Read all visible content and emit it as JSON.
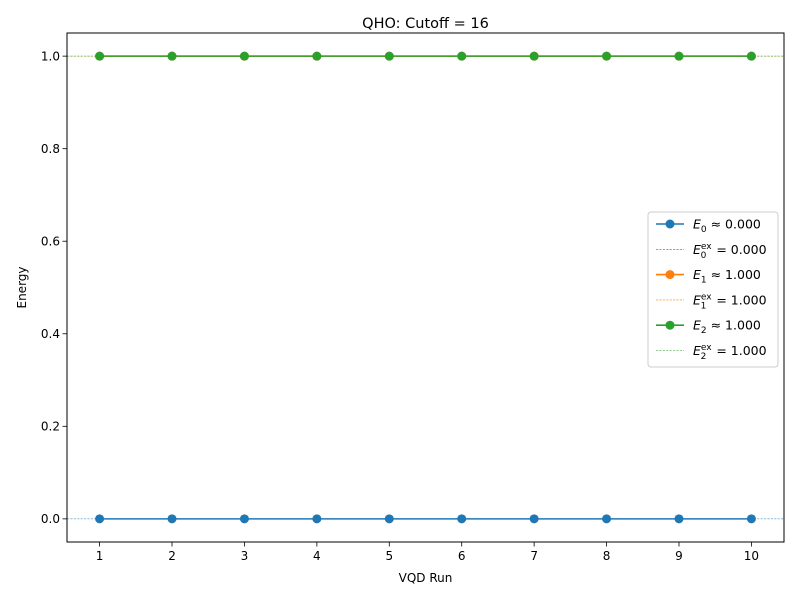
{
  "chart_data": {
    "type": "line",
    "title": "QHO: Cutoff = 16",
    "xlabel": "VQD Run",
    "ylabel": "Energy",
    "x": [
      1,
      2,
      3,
      4,
      5,
      6,
      7,
      8,
      9,
      10
    ],
    "xlim": [
      0.55,
      10.45
    ],
    "ylim": [
      -0.05,
      1.05
    ],
    "xticks": [
      "1",
      "2",
      "3",
      "4",
      "5",
      "6",
      "7",
      "8",
      "9",
      "10"
    ],
    "yticks": [
      "0.0",
      "0.2",
      "0.4",
      "0.6",
      "0.8",
      "1.0"
    ],
    "series": [
      {
        "label_sym": "E",
        "sub": "0",
        "sup": "",
        "rel": " ≈ ",
        "value_text": "0.000",
        "color": "#1f77b4",
        "style": "line-marker",
        "values": [
          0,
          0,
          0,
          0,
          0,
          0,
          0,
          0,
          0,
          0
        ]
      },
      {
        "label_sym": "E",
        "sub": "0",
        "sup": "ex",
        "rel": " = ",
        "value_text": "0.000",
        "color": "#1f77b4",
        "style": "hline-dashed",
        "value": 0
      },
      {
        "label_sym": "E",
        "sub": "1",
        "sup": "",
        "rel": " ≈ ",
        "value_text": "1.000",
        "color": "#ff7f0e",
        "style": "line-marker",
        "values": [
          1,
          1,
          1,
          1,
          1,
          1,
          1,
          1,
          1,
          1
        ]
      },
      {
        "label_sym": "E",
        "sub": "1",
        "sup": "ex",
        "rel": " = ",
        "value_text": "1.000",
        "color": "#ff7f0e",
        "style": "hline-dashed",
        "value": 1
      },
      {
        "label_sym": "E",
        "sub": "2",
        "sup": "",
        "rel": " ≈ ",
        "value_text": "1.000",
        "color": "#2ca02c",
        "style": "line-marker",
        "values": [
          1,
          1,
          1,
          1,
          1,
          1,
          1,
          1,
          1,
          1
        ]
      },
      {
        "label_sym": "E",
        "sub": "2",
        "sup": "ex",
        "rel": " = ",
        "value_text": "1.000",
        "color": "#2ca02c",
        "style": "hline-dashed",
        "value": 1
      }
    ],
    "legend": "right",
    "grid": false
  }
}
